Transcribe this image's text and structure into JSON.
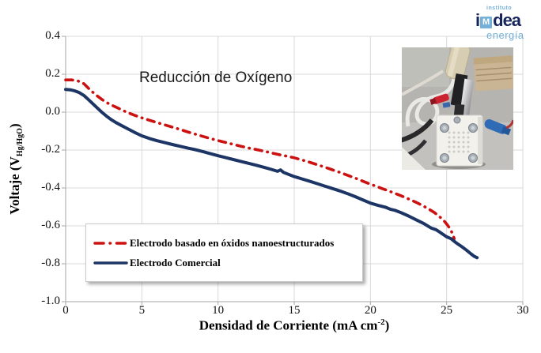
{
  "logo": {
    "institute": "instituto",
    "mark_i": "i",
    "mark_m": "M",
    "mark_dea": "dea",
    "subbrand": "energía",
    "navy": "#16265c",
    "lightblue": "#74b0d8"
  },
  "chart_data": {
    "type": "line",
    "title": "Reducción de Oxígeno",
    "xlabel": {
      "prefix": "Densidad de Corriente (mA cm",
      "sup": "-2",
      "suffix": ")"
    },
    "ylabel": {
      "prefix": "Voltaje  (V",
      "sub": "Hg/HgO",
      "suffix": ")"
    },
    "xlim": [
      0,
      30
    ],
    "ylim": [
      -1.0,
      0.4
    ],
    "grid": true,
    "grid_color": "#d9d9d9",
    "axis_color": "#a6a6a6",
    "legend_position": "lower-left",
    "x_ticks": [
      {
        "v": 0,
        "label": "0"
      },
      {
        "v": 5,
        "label": "5"
      },
      {
        "v": 10,
        "label": "10"
      },
      {
        "v": 15,
        "label": "15"
      },
      {
        "v": 20,
        "label": "20"
      },
      {
        "v": 25,
        "label": "25"
      },
      {
        "v": 30,
        "label": "30"
      }
    ],
    "y_ticks": [
      {
        "v": 0.4,
        "label": "0.4"
      },
      {
        "v": 0.2,
        "label": "0.2"
      },
      {
        "v": 0.0,
        "label": "0.0"
      },
      {
        "v": -0.2,
        "label": "-0.2"
      },
      {
        "v": -0.4,
        "label": "-0.4"
      },
      {
        "v": -0.6,
        "label": "-0.6"
      },
      {
        "v": -0.8,
        "label": "-0.8"
      },
      {
        "v": -1.0,
        "label": "-1.0"
      }
    ],
    "series": [
      {
        "name": "Electrodo basado en óxidos nanoestructurados",
        "color": "#cc1111",
        "style": "dash-dot",
        "width": 3.6,
        "points": [
          [
            0,
            0.17
          ],
          [
            0.4,
            0.17
          ],
          [
            0.8,
            0.165
          ],
          [
            1.2,
            0.15
          ],
          [
            1.6,
            0.118
          ],
          [
            2,
            0.09
          ],
          [
            2.4,
            0.066
          ],
          [
            2.8,
            0.046
          ],
          [
            3.2,
            0.03
          ],
          [
            3.6,
            0.015
          ],
          [
            4,
            0.0
          ],
          [
            4.5,
            -0.016
          ],
          [
            5,
            -0.03
          ],
          [
            5.5,
            -0.043
          ],
          [
            6,
            -0.055
          ],
          [
            6.5,
            -0.067
          ],
          [
            7,
            -0.079
          ],
          [
            7.5,
            -0.091
          ],
          [
            8,
            -0.104
          ],
          [
            8.5,
            -0.116
          ],
          [
            9,
            -0.128
          ],
          [
            9.5,
            -0.139
          ],
          [
            10,
            -0.15
          ],
          [
            10.5,
            -0.16
          ],
          [
            11,
            -0.17
          ],
          [
            11.5,
            -0.18
          ],
          [
            12,
            -0.189
          ],
          [
            12.5,
            -0.197
          ],
          [
            13,
            -0.206
          ],
          [
            13.5,
            -0.215
          ],
          [
            14,
            -0.224
          ],
          [
            14.5,
            -0.232
          ],
          [
            15,
            -0.241
          ],
          [
            15.5,
            -0.252
          ],
          [
            16,
            -0.264
          ],
          [
            16.5,
            -0.277
          ],
          [
            17,
            -0.29
          ],
          [
            17.5,
            -0.304
          ],
          [
            18,
            -0.318
          ],
          [
            18.5,
            -0.333
          ],
          [
            19,
            -0.348
          ],
          [
            19.5,
            -0.364
          ],
          [
            20,
            -0.38
          ],
          [
            20.5,
            -0.395
          ],
          [
            21,
            -0.41
          ],
          [
            21.5,
            -0.425
          ],
          [
            22,
            -0.441
          ],
          [
            22.5,
            -0.458
          ],
          [
            23,
            -0.476
          ],
          [
            23.4,
            -0.492
          ],
          [
            23.8,
            -0.51
          ],
          [
            24.2,
            -0.53
          ],
          [
            24.5,
            -0.549
          ],
          [
            24.8,
            -0.57
          ],
          [
            25.0,
            -0.59
          ],
          [
            25.2,
            -0.612
          ],
          [
            25.35,
            -0.635
          ],
          [
            25.45,
            -0.655
          ],
          [
            25.5,
            -0.668
          ]
        ]
      },
      {
        "name": "Electrodo Comercial",
        "color": "#1c3565",
        "style": "solid",
        "width": 4,
        "points": [
          [
            0,
            0.12
          ],
          [
            0.3,
            0.118
          ],
          [
            0.6,
            0.112
          ],
          [
            0.9,
            0.103
          ],
          [
            1.2,
            0.088
          ],
          [
            1.5,
            0.066
          ],
          [
            1.8,
            0.043
          ],
          [
            2.1,
            0.02
          ],
          [
            2.4,
            -0.002
          ],
          [
            2.7,
            -0.022
          ],
          [
            3,
            -0.04
          ],
          [
            3.3,
            -0.055
          ],
          [
            3.6,
            -0.068
          ],
          [
            4,
            -0.085
          ],
          [
            4.5,
            -0.106
          ],
          [
            5,
            -0.125
          ],
          [
            5.5,
            -0.139
          ],
          [
            6,
            -0.151
          ],
          [
            6.5,
            -0.161
          ],
          [
            7,
            -0.171
          ],
          [
            7.5,
            -0.18
          ],
          [
            8,
            -0.189
          ],
          [
            8.5,
            -0.198
          ],
          [
            9,
            -0.208
          ],
          [
            9.5,
            -0.219
          ],
          [
            10,
            -0.23
          ],
          [
            10.5,
            -0.24
          ],
          [
            11,
            -0.25
          ],
          [
            11.5,
            -0.26
          ],
          [
            12,
            -0.27
          ],
          [
            12.5,
            -0.28
          ],
          [
            13,
            -0.291
          ],
          [
            13.5,
            -0.302
          ],
          [
            13.9,
            -0.312
          ],
          [
            14.1,
            -0.305
          ],
          [
            14.3,
            -0.318
          ],
          [
            15,
            -0.34
          ],
          [
            15.5,
            -0.352
          ],
          [
            16,
            -0.364
          ],
          [
            16.5,
            -0.377
          ],
          [
            17,
            -0.39
          ],
          [
            17.5,
            -0.403
          ],
          [
            18,
            -0.416
          ],
          [
            18.5,
            -0.43
          ],
          [
            19,
            -0.446
          ],
          [
            19.5,
            -0.463
          ],
          [
            20,
            -0.48
          ],
          [
            20.5,
            -0.492
          ],
          [
            21,
            -0.502
          ],
          [
            21.3,
            -0.512
          ],
          [
            21.6,
            -0.518
          ],
          [
            22,
            -0.53
          ],
          [
            22.5,
            -0.548
          ],
          [
            23,
            -0.568
          ],
          [
            23.5,
            -0.588
          ],
          [
            24,
            -0.612
          ],
          [
            24.3,
            -0.62
          ],
          [
            24.6,
            -0.636
          ],
          [
            25,
            -0.658
          ],
          [
            25.3,
            -0.668
          ],
          [
            25.6,
            -0.688
          ],
          [
            26,
            -0.71
          ],
          [
            26.3,
            -0.728
          ],
          [
            26.6,
            -0.748
          ],
          [
            26.8,
            -0.76
          ],
          [
            27,
            -0.768
          ]
        ]
      }
    ]
  }
}
